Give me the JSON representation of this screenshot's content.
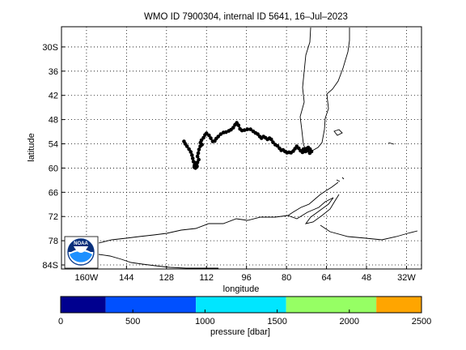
{
  "title": "WMO ID 7900304, internal ID 5641, 16–Jul–2023",
  "axes": {
    "xlabel": "longitude",
    "ylabel": "latitude",
    "x_ticks": [
      {
        "value": -160,
        "label": "160W"
      },
      {
        "value": -144,
        "label": "144"
      },
      {
        "value": -128,
        "label": "128"
      },
      {
        "value": -112,
        "label": "112"
      },
      {
        "value": -96,
        "label": "96"
      },
      {
        "value": -80,
        "label": "80"
      },
      {
        "value": -64,
        "label": "64"
      },
      {
        "value": -48,
        "label": "48"
      },
      {
        "value": -32,
        "label": "32W"
      }
    ],
    "y_ticks": [
      {
        "value": -30,
        "label": "30S"
      },
      {
        "value": -36,
        "label": "36"
      },
      {
        "value": -42,
        "label": "42"
      },
      {
        "value": -48,
        "label": "48"
      },
      {
        "value": -54,
        "label": "54"
      },
      {
        "value": -60,
        "label": "60"
      },
      {
        "value": -66,
        "label": "66"
      },
      {
        "value": -72,
        "label": "72"
      },
      {
        "value": -78,
        "label": "78"
      },
      {
        "value": -84,
        "label": "84S"
      }
    ],
    "xlim": [
      -170,
      -26
    ],
    "ylim": [
      -85,
      -25
    ],
    "grid": true
  },
  "colorbar": {
    "label": "pressure [dbar]",
    "ticks": [
      "0",
      "500",
      "1000",
      "1500",
      "2000",
      "2500"
    ],
    "range": [
      0,
      2500
    ],
    "bins": [
      {
        "from": 0,
        "to": 312,
        "color": "#00008f"
      },
      {
        "from": 312,
        "to": 937,
        "color": "#0050ff"
      },
      {
        "from": 937,
        "to": 1562,
        "color": "#00e6ff"
      },
      {
        "from": 1562,
        "to": 2187,
        "color": "#96ff64"
      },
      {
        "from": 2187,
        "to": 2500,
        "color": "#ffa500"
      }
    ]
  },
  "logo": {
    "name": "noaa-logo",
    "text": "NOAA"
  },
  "chart_data": {
    "type": "scatter",
    "track_color": "#000000",
    "trajectory": [
      [
        -121,
        -53.4
      ],
      [
        -120.5,
        -54
      ],
      [
        -119.8,
        -54.6
      ],
      [
        -119,
        -55.3
      ],
      [
        -118.3,
        -56
      ],
      [
        -117.8,
        -56.8
      ],
      [
        -117.5,
        -57.6
      ],
      [
        -117.2,
        -58.4
      ],
      [
        -116.5,
        -59.2
      ],
      [
        -115.8,
        -59.6
      ],
      [
        -116.4,
        -60
      ],
      [
        -116.8,
        -59.3
      ],
      [
        -116.5,
        -58.7
      ],
      [
        -115.9,
        -59.4
      ],
      [
        -116.3,
        -58.9
      ],
      [
        -116.9,
        -59.8
      ],
      [
        -115.6,
        -58.6
      ],
      [
        -115.1,
        -57.9
      ],
      [
        -115.6,
        -57.1
      ],
      [
        -115.3,
        -56.3
      ],
      [
        -115,
        -55.4
      ],
      [
        -114.5,
        -54.6
      ],
      [
        -113.8,
        -54.2
      ],
      [
        -114.4,
        -53.7
      ],
      [
        -114,
        -53.1
      ],
      [
        -113.2,
        -52.5
      ],
      [
        -112.6,
        -51.8
      ],
      [
        -112,
        -51.4
      ],
      [
        -111,
        -51.9
      ],
      [
        -110.3,
        -52.6
      ],
      [
        -109.5,
        -53.4
      ],
      [
        -108.7,
        -53.3
      ],
      [
        -108.1,
        -52.7
      ],
      [
        -107.3,
        -52.2
      ],
      [
        -106.3,
        -51.6
      ],
      [
        -105.2,
        -51.2
      ],
      [
        -104.2,
        -51.1
      ],
      [
        -103.1,
        -50.8
      ],
      [
        -102.2,
        -50.5
      ],
      [
        -101.3,
        -50
      ],
      [
        -100.6,
        -49.3
      ],
      [
        -99.9,
        -48.8
      ],
      [
        -99.2,
        -49.4
      ],
      [
        -98.6,
        -50.3
      ],
      [
        -97.8,
        -50.7
      ],
      [
        -96.8,
        -50.6
      ],
      [
        -95.6,
        -50.4
      ],
      [
        -94.4,
        -50.4
      ],
      [
        -93.3,
        -50.9
      ],
      [
        -92.4,
        -51.3
      ],
      [
        -91.5,
        -51.6
      ],
      [
        -90.7,
        -52.2
      ],
      [
        -90,
        -52.6
      ],
      [
        -89.2,
        -52.2
      ],
      [
        -88.4,
        -52.5
      ],
      [
        -87.6,
        -52.9
      ],
      [
        -86.8,
        -52.6
      ],
      [
        -86.1,
        -52.9
      ],
      [
        -85.4,
        -53.6
      ],
      [
        -84.5,
        -54.2
      ],
      [
        -83.6,
        -54.5
      ],
      [
        -82.8,
        -55.1
      ],
      [
        -82.1,
        -55.6
      ],
      [
        -81.4,
        -55.5
      ],
      [
        -80.6,
        -55.9
      ],
      [
        -79.8,
        -56.2
      ],
      [
        -79,
        -56.1
      ],
      [
        -78.2,
        -56.2
      ],
      [
        -77.3,
        -55.8
      ],
      [
        -76.6,
        -55.2
      ],
      [
        -75.9,
        -54.6
      ],
      [
        -75.1,
        -55.1
      ],
      [
        -74.4,
        -55.7
      ],
      [
        -73.6,
        -56.1
      ],
      [
        -72.8,
        -55.8
      ],
      [
        -72.1,
        -55.2
      ],
      [
        -71.3,
        -54.9
      ],
      [
        -70.6,
        -55.3
      ],
      [
        -70,
        -55.9
      ],
      [
        -70.7,
        -56.3
      ],
      [
        -71.5,
        -55.6
      ],
      [
        -72.4,
        -55.9
      ],
      [
        -73.2,
        -55.3
      ]
    ]
  }
}
